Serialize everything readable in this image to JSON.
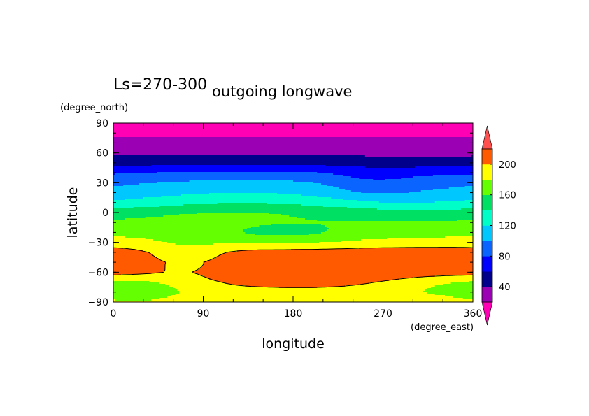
{
  "chart_data": {
    "type": "heatmap",
    "title_left": "Ls=270-300",
    "title": "outgoing longwave",
    "xlabel": "longitude",
    "ylabel": "latitude",
    "x_unit": "(degree_east)",
    "y_unit": "(degree_north)",
    "xlim": [
      0,
      360
    ],
    "ylim": [
      -90,
      90
    ],
    "xticks": [
      "0",
      "90",
      "180",
      "270",
      "360"
    ],
    "yticks": [
      "90",
      "60",
      "30",
      "0",
      "−30",
      "−60",
      "−90"
    ],
    "colorbar": {
      "tick_labels": [
        "40",
        "80",
        "120",
        "160",
        "200"
      ],
      "levels": [
        20,
        40,
        60,
        80,
        100,
        120,
        140,
        160,
        180,
        200,
        220
      ],
      "colors": [
        "#9b00b4",
        "#00008c",
        "#0000ff",
        "#0a64ff",
        "#00c8ff",
        "#00ffc8",
        "#00e164",
        "#64ff00",
        "#ffff00",
        "#ff5a00"
      ],
      "under_color": "#ff00b4",
      "over_color": "#ff5050"
    },
    "contour_levels": [
      200
    ]
  }
}
